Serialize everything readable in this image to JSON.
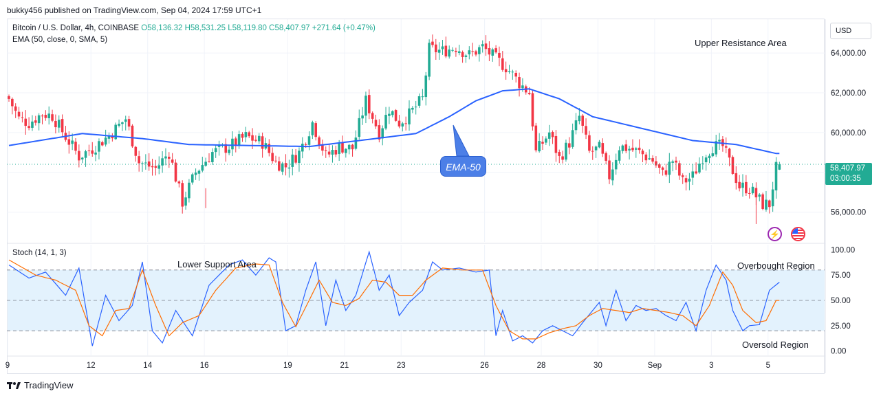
{
  "header": {
    "published_line": "bukky456 published on TradingView.com, Sep 04, 2024 17:59 UTC+1"
  },
  "legend": {
    "symbol": "Bitcoin / U.S. Dollar, 4h, COINBASE",
    "ohlc": "O58,136.32 H58,531.25 L58,119.80 C58,407.97 +271.64 (+0.47%)",
    "ema": "EMA (50, close, 0, SMA, 5)",
    "stoch": "Stoch (14, 1, 3)"
  },
  "annotations": {
    "upper_resistance": "Upper Resistance Area",
    "lower_support": "Lower Support Area",
    "overbought": "Overbought Region",
    "oversold": "Oversold Region",
    "ema_callout": "EMA-50"
  },
  "price_scale": {
    "currency": "USD",
    "last_price": "58,407.97",
    "countdown": "03:00:35"
  },
  "footer": {
    "brand": "TradingView"
  },
  "icons": {
    "flash": "bolt-icon",
    "flag": "us-flag-icon",
    "logo": "tradingview-logo-icon"
  },
  "colors": {
    "up": "#22ab94",
    "down": "#f23645",
    "ema": "#2962ff",
    "stoch_k": "#2962ff",
    "stoch_d": "#ff6d00",
    "stoch_band": "#e3f2fd"
  },
  "chart_data": [
    {
      "type": "candlestick",
      "title": "Bitcoin / U.S. Dollar, 4h, COINBASE",
      "x_ticks": [
        "9",
        "12",
        "14",
        "16",
        "19",
        "21",
        "23",
        "26",
        "28",
        "30",
        "Sep",
        "3",
        "5"
      ],
      "y_ticks": [
        "56,000.00",
        "58,000.00",
        "60,000.00",
        "62,000.00",
        "64,000.00"
      ],
      "ylim": [
        54500,
        65700
      ],
      "candles_keypoints_close": [
        [
          0,
          61700
        ],
        [
          3,
          60700
        ],
        [
          6,
          60500
        ],
        [
          10,
          60950
        ],
        [
          13,
          60850
        ],
        [
          17,
          59800
        ],
        [
          21,
          58800
        ],
        [
          25,
          59200
        ],
        [
          30,
          59850
        ],
        [
          35,
          60700
        ],
        [
          39,
          58500
        ],
        [
          44,
          58200
        ],
        [
          48,
          59000
        ],
        [
          52,
          56500
        ],
        [
          56,
          58000
        ],
        [
          61,
          59000
        ],
        [
          66,
          59300
        ],
        [
          71,
          59800
        ],
        [
          76,
          59500
        ],
        [
          80,
          58500
        ],
        [
          83,
          58300
        ],
        [
          87,
          59000
        ],
        [
          91,
          60500
        ],
        [
          95,
          58800
        ],
        [
          99,
          59300
        ],
        [
          103,
          59200
        ],
        [
          107,
          61600
        ],
        [
          111,
          60000
        ],
        [
          114,
          61200
        ],
        [
          117,
          60500
        ],
        [
          120,
          60900
        ],
        [
          124,
          61700
        ],
        [
          126,
          64200
        ],
        [
          130,
          64100
        ],
        [
          134,
          64300
        ],
        [
          138,
          63900
        ],
        [
          142,
          64300
        ],
        [
          146,
          63700
        ],
        [
          149,
          63300
        ],
        [
          153,
          62500
        ],
        [
          156,
          62000
        ],
        [
          158,
          59000
        ],
        [
          162,
          60000
        ],
        [
          165,
          58700
        ],
        [
          168,
          59500
        ],
        [
          171,
          60800
        ],
        [
          174,
          59000
        ],
        [
          177,
          59200
        ],
        [
          180,
          57800
        ],
        [
          183,
          59300
        ],
        [
          186,
          59200
        ],
        [
          189,
          59000
        ],
        [
          193,
          58600
        ],
        [
          196,
          57900
        ],
        [
          199,
          58600
        ],
        [
          202,
          57500
        ],
        [
          205,
          57800
        ],
        [
          208,
          58800
        ],
        [
          211,
          59300
        ],
        [
          214,
          59300
        ],
        [
          216,
          58500
        ],
        [
          219,
          57300
        ],
        [
          222,
          57200
        ],
        [
          224,
          56800
        ],
        [
          226,
          56400
        ],
        [
          228,
          56400
        ],
        [
          230,
          58200
        ],
        [
          231,
          58400
        ]
      ],
      "last_candle": {
        "open": 58136.32,
        "high": 58531.25,
        "low": 58119.8,
        "close": 58407.97
      },
      "ema50_keypoints": [
        [
          0,
          59350
        ],
        [
          22,
          59950
        ],
        [
          40,
          59700
        ],
        [
          54,
          59400
        ],
        [
          72,
          59350
        ],
        [
          90,
          59300
        ],
        [
          105,
          59600
        ],
        [
          122,
          59950
        ],
        [
          132,
          60800
        ],
        [
          140,
          61600
        ],
        [
          148,
          62100
        ],
        [
          156,
          62200
        ],
        [
          165,
          61700
        ],
        [
          175,
          60800
        ],
        [
          190,
          60200
        ],
        [
          205,
          59600
        ],
        [
          218,
          59400
        ],
        [
          230,
          58950
        ]
      ]
    },
    {
      "type": "line",
      "title": "Stoch (14, 1, 3)",
      "y_ticks": [
        "0.00",
        "25.00",
        "50.00",
        "75.00",
        "100.00"
      ],
      "ylim": [
        -5,
        105
      ],
      "band": [
        20,
        80
      ],
      "series": [
        {
          "color": "#2962ff",
          "keypoints": [
            [
              0,
              85
            ],
            [
              6,
              72
            ],
            [
              11,
              78
            ],
            [
              17,
              55
            ],
            [
              21,
              82
            ],
            [
              25,
              5
            ],
            [
              29,
              55
            ],
            [
              33,
              30
            ],
            [
              37,
              45
            ],
            [
              40,
              88
            ],
            [
              43,
              20
            ],
            [
              46,
              8
            ],
            [
              50,
              40
            ],
            [
              55,
              15
            ],
            [
              60,
              65
            ],
            [
              66,
              85
            ],
            [
              70,
              90
            ],
            [
              74,
              75
            ],
            [
              78,
              92
            ],
            [
              80,
              88
            ],
            [
              83,
              20
            ],
            [
              86,
              25
            ],
            [
              89,
              60
            ],
            [
              92,
              88
            ],
            [
              95,
              25
            ],
            [
              98,
              70
            ],
            [
              101,
              40
            ],
            [
              104,
              55
            ],
            [
              108,
              98
            ],
            [
              111,
              60
            ],
            [
              114,
              75
            ],
            [
              117,
              35
            ],
            [
              120,
              48
            ],
            [
              124,
              60
            ],
            [
              127,
              88
            ],
            [
              130,
              80
            ],
            [
              135,
              82
            ],
            [
              140,
              78
            ],
            [
              144,
              80
            ],
            [
              146,
              15
            ],
            [
              148,
              40
            ],
            [
              151,
              10
            ],
            [
              154,
              15
            ],
            [
              157,
              8
            ],
            [
              160,
              20
            ],
            [
              163,
              25
            ],
            [
              166,
              20
            ],
            [
              169,
              15
            ],
            [
              172,
              28
            ],
            [
              175,
              40
            ],
            [
              177,
              48
            ],
            [
              179,
              25
            ],
            [
              182,
              60
            ],
            [
              185,
              30
            ],
            [
              188,
              45
            ],
            [
              191,
              40
            ],
            [
              194,
              42
            ],
            [
              197,
              35
            ],
            [
              200,
              30
            ],
            [
              203,
              48
            ],
            [
              206,
              20
            ],
            [
              209,
              60
            ],
            [
              212,
              85
            ],
            [
              215,
              70
            ],
            [
              217,
              40
            ],
            [
              220,
              20
            ],
            [
              222,
              25
            ],
            [
              225,
              26
            ],
            [
              228,
              60
            ],
            [
              231,
              68
            ]
          ]
        },
        {
          "color": "#ff6d00",
          "keypoints": [
            [
              0,
              90
            ],
            [
              8,
              75
            ],
            [
              14,
              70
            ],
            [
              20,
              60
            ],
            [
              24,
              25
            ],
            [
              28,
              15
            ],
            [
              32,
              40
            ],
            [
              36,
              42
            ],
            [
              40,
              80
            ],
            [
              44,
              45
            ],
            [
              48,
              15
            ],
            [
              52,
              28
            ],
            [
              57,
              35
            ],
            [
              62,
              60
            ],
            [
              68,
              82
            ],
            [
              74,
              86
            ],
            [
              78,
              85
            ],
            [
              82,
              48
            ],
            [
              86,
              24
            ],
            [
              90,
              50
            ],
            [
              93,
              70
            ],
            [
              97,
              48
            ],
            [
              101,
              45
            ],
            [
              105,
              52
            ],
            [
              109,
              70
            ],
            [
              113,
              68
            ],
            [
              117,
              55
            ],
            [
              121,
              55
            ],
            [
              125,
              70
            ],
            [
              130,
              82
            ],
            [
              136,
              80
            ],
            [
              142,
              80
            ],
            [
              146,
              45
            ],
            [
              150,
              20
            ],
            [
              154,
              12
            ],
            [
              158,
              12
            ],
            [
              162,
              18
            ],
            [
              166,
              22
            ],
            [
              170,
              25
            ],
            [
              174,
              35
            ],
            [
              178,
              42
            ],
            [
              182,
              40
            ],
            [
              186,
              38
            ],
            [
              190,
              42
            ],
            [
              194,
              40
            ],
            [
              198,
              38
            ],
            [
              202,
              35
            ],
            [
              206,
              25
            ],
            [
              210,
              45
            ],
            [
              214,
              78
            ],
            [
              217,
              65
            ],
            [
              220,
              40
            ],
            [
              224,
              28
            ],
            [
              227,
              30
            ],
            [
              230,
              50
            ]
          ]
        }
      ]
    }
  ]
}
